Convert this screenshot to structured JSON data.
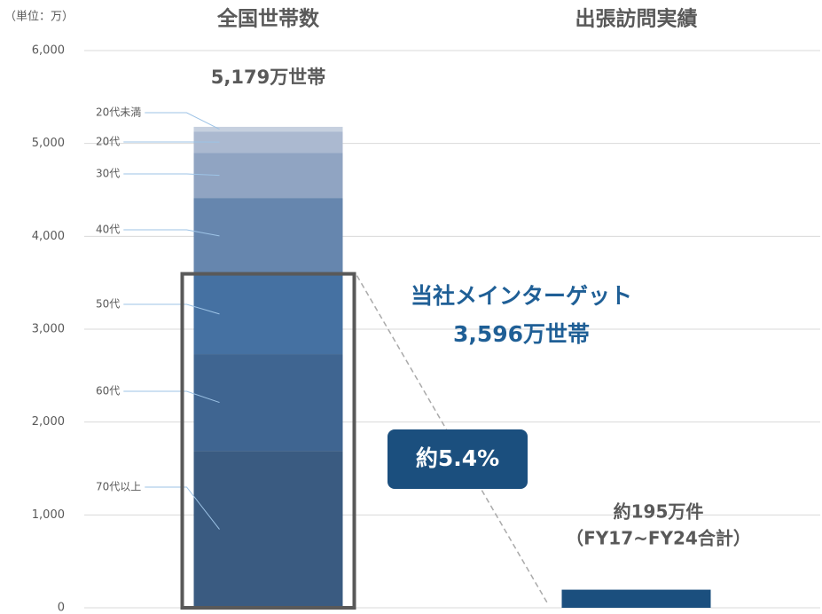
{
  "chart_data": {
    "type": "bar",
    "unit_label": "（単位：万）",
    "categories": [
      "全国世帯数",
      "出張訪問実績"
    ],
    "series": [
      {
        "name": "70代以上",
        "color": "#3a5b81",
        "values": [
          1690,
          null
        ]
      },
      {
        "name": "60代",
        "color": "#3f6591",
        "values": [
          1042,
          null
        ]
      },
      {
        "name": "50代",
        "color": "#4571a2",
        "values": [
          864,
          null
        ]
      },
      {
        "name": "40代",
        "color": "#6686ae",
        "values": [
          817,
          null
        ]
      },
      {
        "name": "30代",
        "color": "#90a4c2",
        "values": [
          487,
          null
        ]
      },
      {
        "name": "20代",
        "color": "#abb9d0",
        "values": [
          229,
          null
        ]
      },
      {
        "name": "20代未満",
        "color": "#c6d0df",
        "values": [
          50,
          null
        ]
      },
      {
        "color": "#1b4f7e",
        "values": [
          null,
          195
        ],
        "value_labels": [
          null,
          "約195万件"
        ]
      }
    ],
    "total": 5179,
    "total_label": "5,179万世帯",
    "target": {
      "label": "当社メインターゲット",
      "value": 3596,
      "value_label": "3,596万世帯"
    },
    "ratio_label": "約5.4%",
    "visit_note": "（FY17~FY24合計）",
    "ylim": [
      0,
      6000
    ],
    "yticks": [
      0,
      {
        "value": 1000,
        "label": "1,000"
      },
      {
        "value": 2000,
        "label": "2,000"
      },
      {
        "value": 3000,
        "label": "3,000"
      },
      {
        "value": 4000,
        "label": "4,000"
      },
      {
        "value": 5000,
        "label": "5,000"
      },
      {
        "value": 6000,
        "label": "6,000"
      }
    ],
    "grid": true
  }
}
